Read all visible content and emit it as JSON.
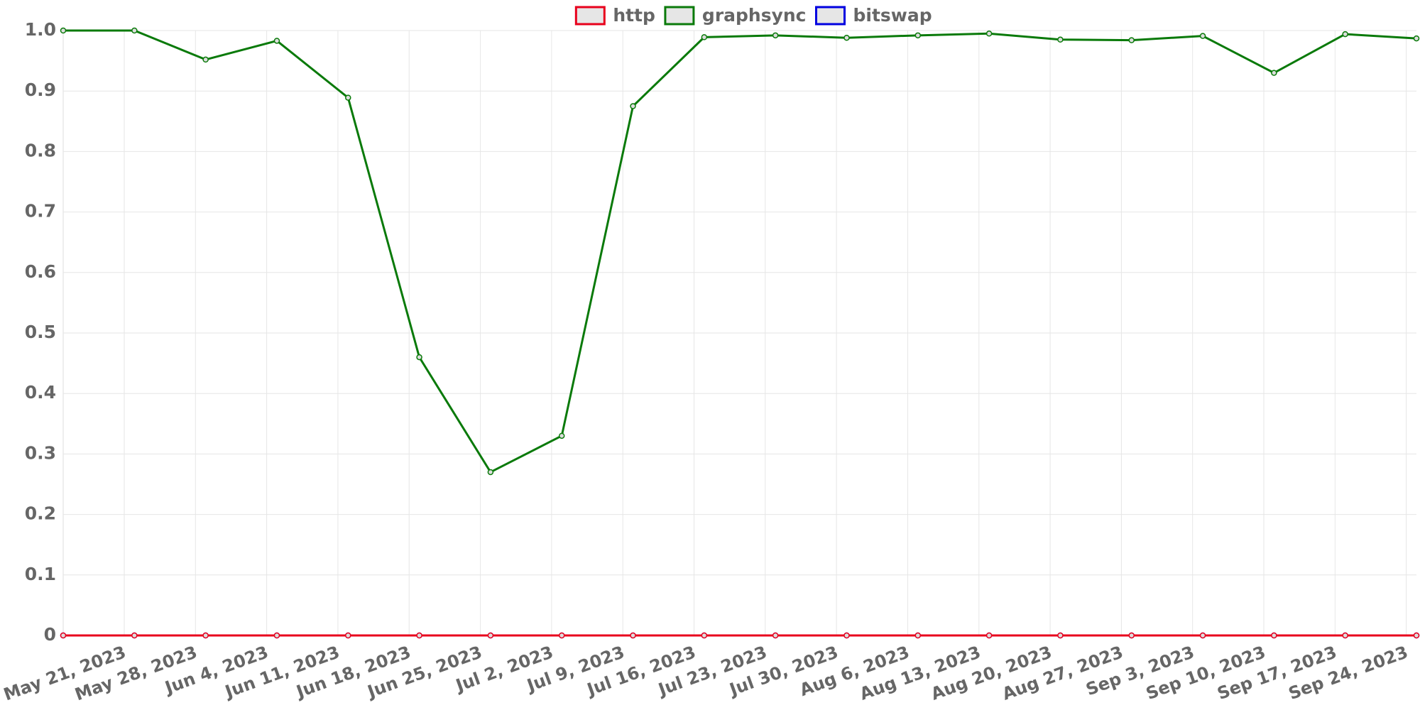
{
  "chart_data": {
    "type": "line",
    "x": [
      "2023-05-15",
      "2023-05-22",
      "2023-05-29",
      "2023-06-05",
      "2023-06-12",
      "2023-06-19",
      "2023-06-26",
      "2023-07-03",
      "2023-07-10",
      "2023-07-17",
      "2023-07-24",
      "2023-07-31",
      "2023-08-07",
      "2023-08-14",
      "2023-08-21",
      "2023-08-28",
      "2023-09-04",
      "2023-09-11",
      "2023-09-18",
      "2023-09-25"
    ],
    "series": [
      {
        "name": "http",
        "color": "#e8001c",
        "values": [
          0,
          0,
          0,
          0,
          0,
          0,
          0,
          0,
          0,
          0,
          0,
          0,
          0,
          0,
          0,
          0,
          0,
          0,
          0,
          0
        ]
      },
      {
        "name": "graphsync",
        "color": "#0a7a0a",
        "values": [
          1.0,
          1.0,
          0.952,
          0.983,
          0.889,
          0.46,
          0.27,
          0.33,
          0.875,
          0.989,
          0.992,
          0.988,
          0.992,
          0.995,
          0.985,
          0.984,
          0.991,
          0.93,
          0.994,
          0.987
        ]
      },
      {
        "name": "bitswap",
        "color": "#0000e0",
        "values": [
          0,
          0,
          0,
          0,
          0,
          0,
          0,
          0,
          0,
          0,
          0,
          0,
          0,
          0,
          0,
          0,
          0,
          0,
          0,
          0
        ]
      }
    ],
    "xlim": [
      "2023-05-15",
      "2023-09-25"
    ],
    "xticks": [
      {
        "value": "2023-05-21",
        "label": "May 21, 2023"
      },
      {
        "value": "2023-05-28",
        "label": "May 28, 2023"
      },
      {
        "value": "2023-06-04",
        "label": "Jun 4, 2023"
      },
      {
        "value": "2023-06-11",
        "label": "Jun 11, 2023"
      },
      {
        "value": "2023-06-18",
        "label": "Jun 18, 2023"
      },
      {
        "value": "2023-06-25",
        "label": "Jun 25, 2023"
      },
      {
        "value": "2023-07-02",
        "label": "Jul 2, 2023"
      },
      {
        "value": "2023-07-09",
        "label": "Jul 9, 2023"
      },
      {
        "value": "2023-07-16",
        "label": "Jul 16, 2023"
      },
      {
        "value": "2023-07-23",
        "label": "Jul 23, 2023"
      },
      {
        "value": "2023-07-30",
        "label": "Jul 30, 2023"
      },
      {
        "value": "2023-08-06",
        "label": "Aug 6, 2023"
      },
      {
        "value": "2023-08-13",
        "label": "Aug 13, 2023"
      },
      {
        "value": "2023-08-20",
        "label": "Aug 20, 2023"
      },
      {
        "value": "2023-08-27",
        "label": "Aug 27, 2023"
      },
      {
        "value": "2023-09-03",
        "label": "Sep 3, 2023"
      },
      {
        "value": "2023-09-10",
        "label": "Sep 10, 2023"
      },
      {
        "value": "2023-09-17",
        "label": "Sep 17, 2023"
      },
      {
        "value": "2023-09-24",
        "label": "Sep 24, 2023"
      }
    ],
    "ylim": [
      0,
      1
    ],
    "yticks": [
      0,
      0.1,
      0.2,
      0.3,
      0.4,
      0.5,
      0.6,
      0.7,
      0.8,
      0.9,
      {
        "value": 1,
        "label": "1.0"
      }
    ],
    "grid": true,
    "legend": "top"
  }
}
